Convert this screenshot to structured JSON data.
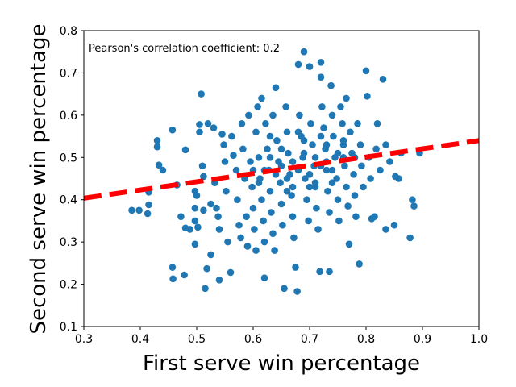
{
  "chart_data": {
    "type": "scatter",
    "xlabel": "First serve win percentage",
    "ylabel": "Second serve win percentage",
    "annotation": "Pearson's correlation coefficient: 0.2",
    "xlim": [
      0.3,
      1.0
    ],
    "ylim": [
      0.1,
      0.8
    ],
    "xticks": [
      0.3,
      0.4,
      0.5,
      0.6,
      0.7,
      0.8,
      0.9,
      1.0
    ],
    "yticks": [
      0.1,
      0.2,
      0.3,
      0.4,
      0.5,
      0.6,
      0.7,
      0.8
    ],
    "xtick_labels": [
      "0.3",
      "0.4",
      "0.5",
      "0.6",
      "0.7",
      "0.8",
      "0.9",
      "1.0"
    ],
    "ytick_labels": [
      "0.1",
      "0.2",
      "0.3",
      "0.4",
      "0.5",
      "0.6",
      "0.7",
      "0.8"
    ],
    "grid": false,
    "points_color": "#1f77b4",
    "fit_line_color": "#ff0000",
    "fit_line": {
      "slope": 0.195,
      "intercept": 0.345,
      "style": "dashed"
    },
    "points": [
      [
        0.385,
        0.375
      ],
      [
        0.398,
        0.375
      ],
      [
        0.415,
        0.418
      ],
      [
        0.415,
        0.388
      ],
      [
        0.413,
        0.367
      ],
      [
        0.43,
        0.54
      ],
      [
        0.43,
        0.525
      ],
      [
        0.433,
        0.482
      ],
      [
        0.44,
        0.47
      ],
      [
        0.457,
        0.565
      ],
      [
        0.457,
        0.24
      ],
      [
        0.458,
        0.213
      ],
      [
        0.465,
        0.435
      ],
      [
        0.472,
        0.36
      ],
      [
        0.478,
        0.222
      ],
      [
        0.48,
        0.518
      ],
      [
        0.48,
        0.333
      ],
      [
        0.488,
        0.33
      ],
      [
        0.497,
        0.42
      ],
      [
        0.497,
        0.38
      ],
      [
        0.497,
        0.35
      ],
      [
        0.497,
        0.295
      ],
      [
        0.5,
        0.41
      ],
      [
        0.502,
        0.335
      ],
      [
        0.505,
        0.578
      ],
      [
        0.505,
        0.56
      ],
      [
        0.508,
        0.65
      ],
      [
        0.51,
        0.48
      ],
      [
        0.512,
        0.455
      ],
      [
        0.512,
        0.375
      ],
      [
        0.515,
        0.19
      ],
      [
        0.518,
        0.237
      ],
      [
        0.52,
        0.58
      ],
      [
        0.525,
        0.39
      ],
      [
        0.525,
        0.27
      ],
      [
        0.53,
        0.57
      ],
      [
        0.532,
        0.44
      ],
      [
        0.535,
        0.38
      ],
      [
        0.538,
        0.36
      ],
      [
        0.54,
        0.33
      ],
      [
        0.54,
        0.21
      ],
      [
        0.545,
        0.555
      ],
      [
        0.548,
        0.53
      ],
      [
        0.55,
        0.49
      ],
      [
        0.552,
        0.42
      ],
      [
        0.555,
        0.3
      ],
      [
        0.56,
        0.228
      ],
      [
        0.562,
        0.55
      ],
      [
        0.565,
        0.505
      ],
      [
        0.57,
        0.47
      ],
      [
        0.572,
        0.4
      ],
      [
        0.575,
        0.34
      ],
      [
        0.578,
        0.31
      ],
      [
        0.58,
        0.58
      ],
      [
        0.582,
        0.52
      ],
      [
        0.585,
        0.45
      ],
      [
        0.588,
        0.36
      ],
      [
        0.59,
        0.29
      ],
      [
        0.592,
        0.6
      ],
      [
        0.595,
        0.49
      ],
      [
        0.598,
        0.43
      ],
      [
        0.6,
        0.38
      ],
      [
        0.602,
        0.33
      ],
      [
        0.605,
        0.28
      ],
      [
        0.605,
        0.56
      ],
      [
        0.608,
        0.62
      ],
      [
        0.61,
        0.5
      ],
      [
        0.612,
        0.45
      ],
      [
        0.615,
        0.4
      ],
      [
        0.615,
        0.64
      ],
      [
        0.618,
        0.35
      ],
      [
        0.62,
        0.3
      ],
      [
        0.62,
        0.215
      ],
      [
        0.622,
        0.58
      ],
      [
        0.625,
        0.52
      ],
      [
        0.628,
        0.47
      ],
      [
        0.63,
        0.42
      ],
      [
        0.632,
        0.37
      ],
      [
        0.635,
        0.6
      ],
      [
        0.635,
        0.32
      ],
      [
        0.638,
        0.28
      ],
      [
        0.64,
        0.665
      ],
      [
        0.642,
        0.54
      ],
      [
        0.645,
        0.49
      ],
      [
        0.648,
        0.44
      ],
      [
        0.65,
        0.39
      ],
      [
        0.652,
        0.34
      ],
      [
        0.655,
        0.19
      ],
      [
        0.658,
        0.62
      ],
      [
        0.66,
        0.56
      ],
      [
        0.662,
        0.51
      ],
      [
        0.665,
        0.46
      ],
      [
        0.668,
        0.41
      ],
      [
        0.67,
        0.36
      ],
      [
        0.672,
        0.31
      ],
      [
        0.675,
        0.24
      ],
      [
        0.678,
        0.183
      ],
      [
        0.68,
        0.72
      ],
      [
        0.682,
        0.6
      ],
      [
        0.685,
        0.55
      ],
      [
        0.688,
        0.5
      ],
      [
        0.69,
        0.75
      ],
      [
        0.692,
        0.45
      ],
      [
        0.695,
        0.4
      ],
      [
        0.698,
        0.35
      ],
      [
        0.7,
        0.715
      ],
      [
        0.702,
        0.58
      ],
      [
        0.705,
        0.53
      ],
      [
        0.708,
        0.48
      ],
      [
        0.71,
        0.43
      ],
      [
        0.712,
        0.38
      ],
      [
        0.715,
        0.33
      ],
      [
        0.718,
        0.23
      ],
      [
        0.72,
        0.725
      ],
      [
        0.72,
        0.69
      ],
      [
        0.722,
        0.62
      ],
      [
        0.725,
        0.57
      ],
      [
        0.728,
        0.52
      ],
      [
        0.73,
        0.47
      ],
      [
        0.732,
        0.42
      ],
      [
        0.735,
        0.37
      ],
      [
        0.735,
        0.23
      ],
      [
        0.738,
        0.67
      ],
      [
        0.74,
        0.6
      ],
      [
        0.742,
        0.55
      ],
      [
        0.745,
        0.5
      ],
      [
        0.748,
        0.45
      ],
      [
        0.75,
        0.4
      ],
      [
        0.752,
        0.35
      ],
      [
        0.755,
        0.62
      ],
      [
        0.758,
        0.58
      ],
      [
        0.76,
        0.53
      ],
      [
        0.762,
        0.48
      ],
      [
        0.765,
        0.43
      ],
      [
        0.765,
        0.64
      ],
      [
        0.768,
        0.385
      ],
      [
        0.77,
        0.295
      ],
      [
        0.772,
        0.56
      ],
      [
        0.775,
        0.51
      ],
      [
        0.778,
        0.46
      ],
      [
        0.78,
        0.41
      ],
      [
        0.782,
        0.36
      ],
      [
        0.785,
        0.58
      ],
      [
        0.788,
        0.248
      ],
      [
        0.79,
        0.53
      ],
      [
        0.792,
        0.48
      ],
      [
        0.795,
        0.43
      ],
      [
        0.8,
        0.705
      ],
      [
        0.802,
        0.645
      ],
      [
        0.805,
        0.5
      ],
      [
        0.808,
        0.45
      ],
      [
        0.81,
        0.355
      ],
      [
        0.815,
        0.36
      ],
      [
        0.818,
        0.52
      ],
      [
        0.82,
        0.58
      ],
      [
        0.825,
        0.47
      ],
      [
        0.83,
        0.685
      ],
      [
        0.835,
        0.53
      ],
      [
        0.835,
        0.33
      ],
      [
        0.842,
        0.49
      ],
      [
        0.85,
        0.34
      ],
      [
        0.852,
        0.455
      ],
      [
        0.858,
        0.45
      ],
      [
        0.862,
        0.51
      ],
      [
        0.878,
        0.31
      ],
      [
        0.882,
        0.4
      ],
      [
        0.885,
        0.385
      ],
      [
        0.895,
        0.51
      ],
      [
        0.62,
        0.47
      ],
      [
        0.63,
        0.5
      ],
      [
        0.64,
        0.46
      ],
      [
        0.65,
        0.48
      ],
      [
        0.66,
        0.45
      ],
      [
        0.67,
        0.49
      ],
      [
        0.68,
        0.47
      ],
      [
        0.69,
        0.51
      ],
      [
        0.7,
        0.46
      ],
      [
        0.71,
        0.5
      ],
      [
        0.72,
        0.48
      ],
      [
        0.73,
        0.49
      ],
      [
        0.74,
        0.47
      ],
      [
        0.75,
        0.51
      ],
      [
        0.76,
        0.5
      ],
      [
        0.65,
        0.52
      ],
      [
        0.67,
        0.43
      ],
      [
        0.69,
        0.54
      ],
      [
        0.71,
        0.44
      ],
      [
        0.73,
        0.53
      ],
      [
        0.61,
        0.44
      ],
      [
        0.63,
        0.55
      ],
      [
        0.66,
        0.42
      ],
      [
        0.68,
        0.56
      ],
      [
        0.7,
        0.43
      ],
      [
        0.72,
        0.55
      ],
      [
        0.74,
        0.44
      ],
      [
        0.76,
        0.54
      ],
      [
        0.78,
        0.5
      ],
      [
        0.6,
        0.47
      ]
    ]
  }
}
